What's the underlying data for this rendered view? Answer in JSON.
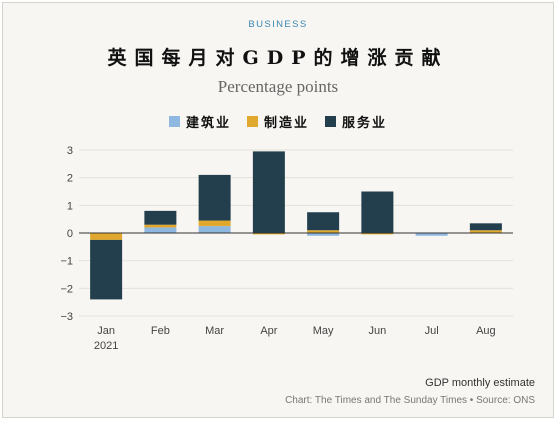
{
  "header": {
    "kicker": "BUSINESS",
    "title": "英国每月对GDP的增涨贡献",
    "subtitle": "Percentage points"
  },
  "legend": {
    "items": [
      {
        "label": "建筑业",
        "color": "#8fb8e0"
      },
      {
        "label": "制造业",
        "color": "#e0a92e"
      },
      {
        "label": "服务业",
        "color": "#233f4d"
      }
    ]
  },
  "footer": {
    "note": "GDP monthly estimate",
    "source": "Chart: The Times and The Sunday Times • Source: ONS"
  },
  "chart_data": {
    "type": "bar",
    "stacked": true,
    "categories": [
      "Jan",
      "Feb",
      "Mar",
      "Apr",
      "May",
      "Jun",
      "Jul",
      "Aug"
    ],
    "category_sublabels": [
      "2021",
      "",
      "",
      "",
      "",
      "",
      "",
      ""
    ],
    "series": [
      {
        "name": "建筑业",
        "color": "#8fb8e0",
        "values": [
          0.0,
          0.2,
          0.25,
          0.0,
          -0.1,
          0.0,
          -0.1,
          0.0
        ]
      },
      {
        "name": "制造业",
        "color": "#e0a92e",
        "values": [
          -0.25,
          0.1,
          0.2,
          -0.05,
          0.1,
          -0.05,
          0.0,
          0.1
        ]
      },
      {
        "name": "服务业",
        "color": "#233f4d",
        "values": [
          -2.15,
          0.5,
          1.65,
          2.95,
          0.65,
          1.5,
          0.0,
          0.25
        ]
      }
    ],
    "ylim": [
      -3,
      3
    ],
    "yticks": [
      -3,
      -2,
      -1,
      0,
      1,
      2,
      3
    ],
    "ytick_labels": [
      "−3",
      "−2",
      "−1",
      "0",
      "1",
      "2",
      "3"
    ],
    "grid": true,
    "legend_position": "top-center"
  }
}
